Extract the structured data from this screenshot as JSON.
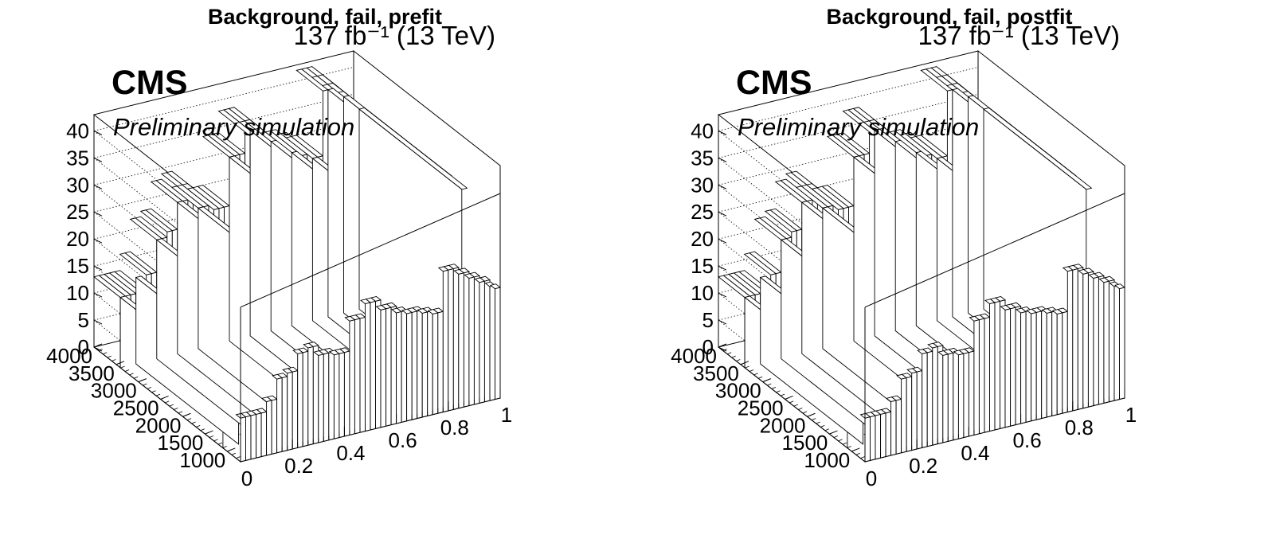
{
  "panels": [
    {
      "title": "Background, fail, prefit",
      "lumi": "137 fb⁻¹ (13 TeV)",
      "cms": "CMS",
      "prelim": "Preliminary simulation"
    },
    {
      "title": "Background, fail, postfit",
      "lumi": "137 fb⁻¹ (13 TeV)",
      "cms": "CMS",
      "prelim": "Preliminary simulation"
    }
  ],
  "chart_data": [
    {
      "type": "bar",
      "subtype": "lego3d",
      "title": "Background, fail, prefit",
      "xlim": [
        0,
        1
      ],
      "ylim": [
        700,
        4000
      ],
      "zlim": [
        0,
        43
      ],
      "x_ticks": [
        "0",
        "0.2",
        "0.4",
        "0.6",
        "0.8",
        "1"
      ],
      "y_ticks": [
        "1000",
        "1500",
        "2000",
        "2500",
        "3000",
        "3500",
        "4000"
      ],
      "z_ticks": [
        "0",
        "5",
        "10",
        "15",
        "20",
        "25",
        "30",
        "35",
        "40"
      ],
      "grid": true,
      "x_bins": 50,
      "back_row_values": [
        13,
        13,
        13,
        13,
        13,
        16,
        16,
        22,
        22,
        23,
        23,
        28,
        28,
        29,
        29,
        26,
        26,
        26,
        25,
        25,
        25,
        34,
        34,
        34,
        38,
        38,
        38,
        35,
        35,
        35,
        33,
        33,
        32,
        32,
        32,
        31,
        31,
        30,
        30,
        42,
        42,
        42,
        40,
        40,
        38,
        38,
        36,
        36,
        34,
        33
      ]
    },
    {
      "type": "bar",
      "subtype": "lego3d",
      "title": "Background, fail, postfit",
      "xlim": [
        0,
        1
      ],
      "ylim": [
        700,
        4000
      ],
      "zlim": [
        0,
        43
      ],
      "x_ticks": [
        "0",
        "0.2",
        "0.4",
        "0.6",
        "0.8",
        "1"
      ],
      "y_ticks": [
        "1000",
        "1500",
        "2000",
        "2500",
        "3000",
        "3500",
        "4000"
      ],
      "z_ticks": [
        "0",
        "5",
        "10",
        "15",
        "20",
        "25",
        "30",
        "35",
        "40"
      ],
      "grid": true,
      "x_bins": 50,
      "back_row_values": [
        13,
        13,
        13,
        13,
        13,
        16,
        16,
        22,
        22,
        23,
        23,
        28,
        28,
        29,
        29,
        26,
        26,
        26,
        25,
        25,
        25,
        34,
        34,
        34,
        38,
        38,
        38,
        35,
        35,
        35,
        33,
        33,
        32,
        32,
        32,
        31,
        31,
        30,
        30,
        42,
        42,
        42,
        40,
        40,
        38,
        38,
        36,
        36,
        34,
        33
      ]
    }
  ]
}
